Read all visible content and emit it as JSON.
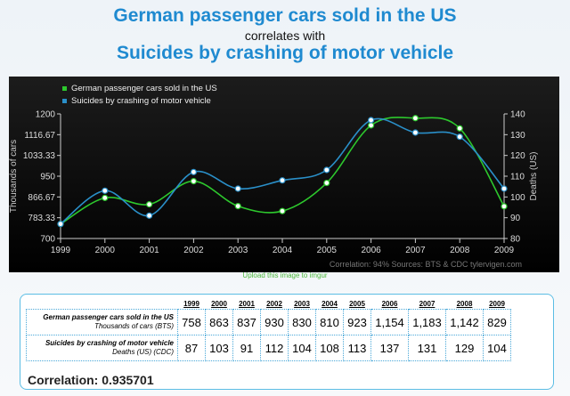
{
  "header": {
    "title_line1": "German passenger cars sold in the US",
    "connector": "correlates with",
    "title_line2": "Suicides by crashing of motor vehicle"
  },
  "upload_link": "Upload this image to imgur",
  "chart_data": {
    "type": "line",
    "x": [
      1999,
      2000,
      2001,
      2002,
      2003,
      2004,
      2005,
      2006,
      2007,
      2008,
      2009
    ],
    "series": [
      {
        "name": "German passenger cars sold in the US",
        "axis": "left",
        "color": "#2dc82d",
        "values": [
          758,
          863,
          837,
          930,
          830,
          810,
          923,
          1154,
          1183,
          1142,
          829
        ]
      },
      {
        "name": "Suicides by crashing of motor vehicle",
        "axis": "right",
        "color": "#2a8fc8",
        "values": [
          87,
          103,
          91,
          112,
          104,
          108,
          113,
          137,
          131,
          129,
          104
        ]
      }
    ],
    "ylabel_left": "Thousands of cars",
    "ylabel_right": "Deaths (US)",
    "ylim_left": [
      700,
      1200
    ],
    "yticks_left": [
      "700",
      "783.33",
      "866.67",
      "950",
      "1033.33",
      "1116.67",
      "1200"
    ],
    "ylim_right": [
      80,
      140
    ],
    "yticks_right": [
      "80",
      "90",
      "100",
      "110",
      "120",
      "130",
      "140"
    ],
    "footer": "Correlation: 94%    Sources: BTS & CDC    tylervigen.com",
    "legend_position": "top-left",
    "grid": false,
    "background": "#000000"
  },
  "table": {
    "years": [
      "1999",
      "2000",
      "2001",
      "2002",
      "2003",
      "2004",
      "2005",
      "2006",
      "2007",
      "2008",
      "2009"
    ],
    "rows": [
      {
        "label": "German passenger cars sold in the US",
        "unit": "Thousands of cars (BTS)",
        "values": [
          "758",
          "863",
          "837",
          "930",
          "830",
          "810",
          "923",
          "1,154",
          "1,183",
          "1,142",
          "829"
        ]
      },
      {
        "label": "Suicides by crashing of motor vehicle",
        "unit": "Deaths (US) (CDC)",
        "values": [
          "87",
          "103",
          "91",
          "112",
          "104",
          "108",
          "113",
          "137",
          "131",
          "129",
          "104"
        ]
      }
    ]
  },
  "correlation": "Correlation: 0.935701"
}
